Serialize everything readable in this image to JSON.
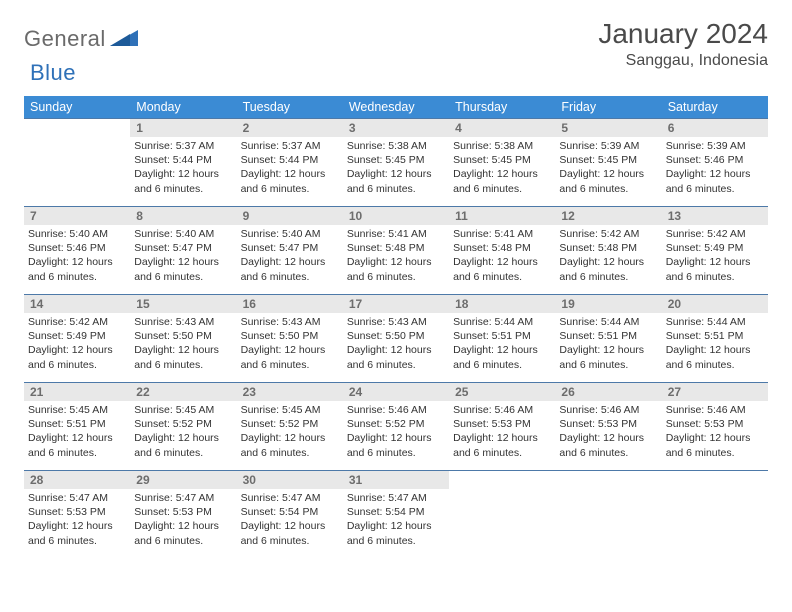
{
  "brand": {
    "part1": "General",
    "part2": "Blue",
    "shape_color": "#2f71b8"
  },
  "title": "January 2024",
  "location": "Sanggau, Indonesia",
  "colors": {
    "header_bg": "#3b8bd4",
    "header_text": "#ffffff",
    "row_divider": "#4d79a8",
    "daynum_bg": "#e8e8e8",
    "daynum_text": "#6d6d6d",
    "body_text": "#333333",
    "title_text": "#4a4a4a"
  },
  "weekdays": [
    "Sunday",
    "Monday",
    "Tuesday",
    "Wednesday",
    "Thursday",
    "Friday",
    "Saturday"
  ],
  "first_weekday_index": 1,
  "days": {
    "1": {
      "sunrise": "5:37 AM",
      "sunset": "5:44 PM",
      "daylight": "12 hours and 6 minutes."
    },
    "2": {
      "sunrise": "5:37 AM",
      "sunset": "5:44 PM",
      "daylight": "12 hours and 6 minutes."
    },
    "3": {
      "sunrise": "5:38 AM",
      "sunset": "5:45 PM",
      "daylight": "12 hours and 6 minutes."
    },
    "4": {
      "sunrise": "5:38 AM",
      "sunset": "5:45 PM",
      "daylight": "12 hours and 6 minutes."
    },
    "5": {
      "sunrise": "5:39 AM",
      "sunset": "5:45 PM",
      "daylight": "12 hours and 6 minutes."
    },
    "6": {
      "sunrise": "5:39 AM",
      "sunset": "5:46 PM",
      "daylight": "12 hours and 6 minutes."
    },
    "7": {
      "sunrise": "5:40 AM",
      "sunset": "5:46 PM",
      "daylight": "12 hours and 6 minutes."
    },
    "8": {
      "sunrise": "5:40 AM",
      "sunset": "5:47 PM",
      "daylight": "12 hours and 6 minutes."
    },
    "9": {
      "sunrise": "5:40 AM",
      "sunset": "5:47 PM",
      "daylight": "12 hours and 6 minutes."
    },
    "10": {
      "sunrise": "5:41 AM",
      "sunset": "5:48 PM",
      "daylight": "12 hours and 6 minutes."
    },
    "11": {
      "sunrise": "5:41 AM",
      "sunset": "5:48 PM",
      "daylight": "12 hours and 6 minutes."
    },
    "12": {
      "sunrise": "5:42 AM",
      "sunset": "5:48 PM",
      "daylight": "12 hours and 6 minutes."
    },
    "13": {
      "sunrise": "5:42 AM",
      "sunset": "5:49 PM",
      "daylight": "12 hours and 6 minutes."
    },
    "14": {
      "sunrise": "5:42 AM",
      "sunset": "5:49 PM",
      "daylight": "12 hours and 6 minutes."
    },
    "15": {
      "sunrise": "5:43 AM",
      "sunset": "5:50 PM",
      "daylight": "12 hours and 6 minutes."
    },
    "16": {
      "sunrise": "5:43 AM",
      "sunset": "5:50 PM",
      "daylight": "12 hours and 6 minutes."
    },
    "17": {
      "sunrise": "5:43 AM",
      "sunset": "5:50 PM",
      "daylight": "12 hours and 6 minutes."
    },
    "18": {
      "sunrise": "5:44 AM",
      "sunset": "5:51 PM",
      "daylight": "12 hours and 6 minutes."
    },
    "19": {
      "sunrise": "5:44 AM",
      "sunset": "5:51 PM",
      "daylight": "12 hours and 6 minutes."
    },
    "20": {
      "sunrise": "5:44 AM",
      "sunset": "5:51 PM",
      "daylight": "12 hours and 6 minutes."
    },
    "21": {
      "sunrise": "5:45 AM",
      "sunset": "5:51 PM",
      "daylight": "12 hours and 6 minutes."
    },
    "22": {
      "sunrise": "5:45 AM",
      "sunset": "5:52 PM",
      "daylight": "12 hours and 6 minutes."
    },
    "23": {
      "sunrise": "5:45 AM",
      "sunset": "5:52 PM",
      "daylight": "12 hours and 6 minutes."
    },
    "24": {
      "sunrise": "5:46 AM",
      "sunset": "5:52 PM",
      "daylight": "12 hours and 6 minutes."
    },
    "25": {
      "sunrise": "5:46 AM",
      "sunset": "5:53 PM",
      "daylight": "12 hours and 6 minutes."
    },
    "26": {
      "sunrise": "5:46 AM",
      "sunset": "5:53 PM",
      "daylight": "12 hours and 6 minutes."
    },
    "27": {
      "sunrise": "5:46 AM",
      "sunset": "5:53 PM",
      "daylight": "12 hours and 6 minutes."
    },
    "28": {
      "sunrise": "5:47 AM",
      "sunset": "5:53 PM",
      "daylight": "12 hours and 6 minutes."
    },
    "29": {
      "sunrise": "5:47 AM",
      "sunset": "5:53 PM",
      "daylight": "12 hours and 6 minutes."
    },
    "30": {
      "sunrise": "5:47 AM",
      "sunset": "5:54 PM",
      "daylight": "12 hours and 6 minutes."
    },
    "31": {
      "sunrise": "5:47 AM",
      "sunset": "5:54 PM",
      "daylight": "12 hours and 6 minutes."
    }
  },
  "labels": {
    "sunrise": "Sunrise:",
    "sunset": "Sunset:",
    "daylight": "Daylight:"
  }
}
